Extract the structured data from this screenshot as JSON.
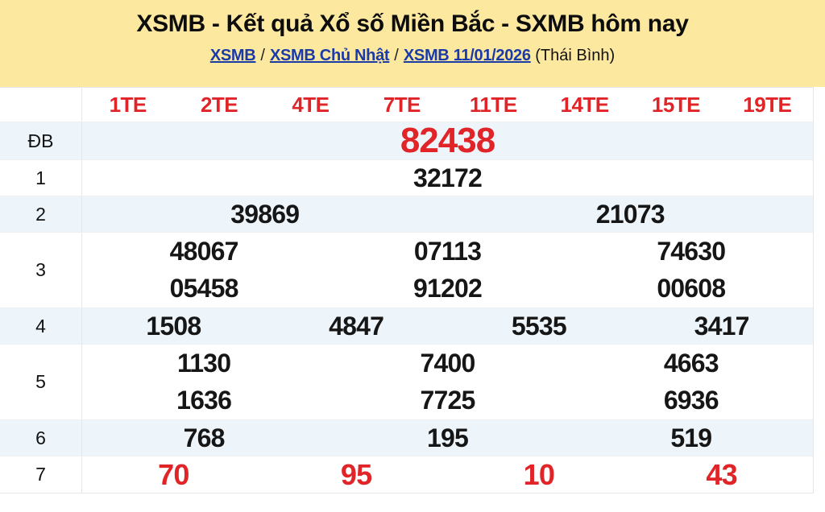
{
  "masthead": {
    "title": "XSMB - Kết quả Xổ số Miền Bắc - SXMB hôm nay"
  },
  "breadcrumb": {
    "items": [
      {
        "label": "XSMB",
        "type": "link"
      },
      {
        "label": "/",
        "type": "sep"
      },
      {
        "label": "XSMB Chủ Nhật",
        "type": "link"
      },
      {
        "label": "/",
        "type": "sep"
      },
      {
        "label": "XSMB 11/01/2026",
        "type": "link"
      },
      {
        "label": "(Thái Bình)",
        "type": "text"
      }
    ]
  },
  "results_table": {
    "column_headers": [
      "1TE",
      "2TE",
      "4TE",
      "7TE",
      "11TE",
      "14TE",
      "15TE",
      "19TE"
    ],
    "rows": [
      {
        "label": "ĐB",
        "style": "special",
        "striped": true,
        "lines": [
          [
            "82438"
          ]
        ]
      },
      {
        "label": "1",
        "style": "normal",
        "striped": false,
        "lines": [
          [
            "32172"
          ]
        ]
      },
      {
        "label": "2",
        "style": "normal",
        "striped": true,
        "lines": [
          [
            "39869",
            "21073"
          ]
        ]
      },
      {
        "label": "3",
        "style": "normal",
        "striped": false,
        "lines": [
          [
            "48067",
            "07113",
            "74630"
          ],
          [
            "05458",
            "91202",
            "00608"
          ]
        ]
      },
      {
        "label": "4",
        "style": "normal",
        "striped": true,
        "lines": [
          [
            "1508",
            "4847",
            "5535",
            "3417"
          ]
        ]
      },
      {
        "label": "5",
        "style": "normal",
        "striped": false,
        "lines": [
          [
            "1130",
            "7400",
            "4663"
          ],
          [
            "1636",
            "7725",
            "6936"
          ]
        ]
      },
      {
        "label": "6",
        "style": "normal",
        "striped": true,
        "lines": [
          [
            "768",
            "195",
            "519"
          ]
        ]
      },
      {
        "label": "7",
        "style": "red",
        "striped": false,
        "lines": [
          [
            "70",
            "95",
            "10",
            "43"
          ]
        ]
      }
    ]
  },
  "colors": {
    "accent_red": "#E02428",
    "link_blue": "#1A3AA8",
    "masthead_bg": "#FDE8A0",
    "stripe_bg": "#EDF5FB",
    "border": "#E6E6E6",
    "text_dark": "#161616"
  }
}
